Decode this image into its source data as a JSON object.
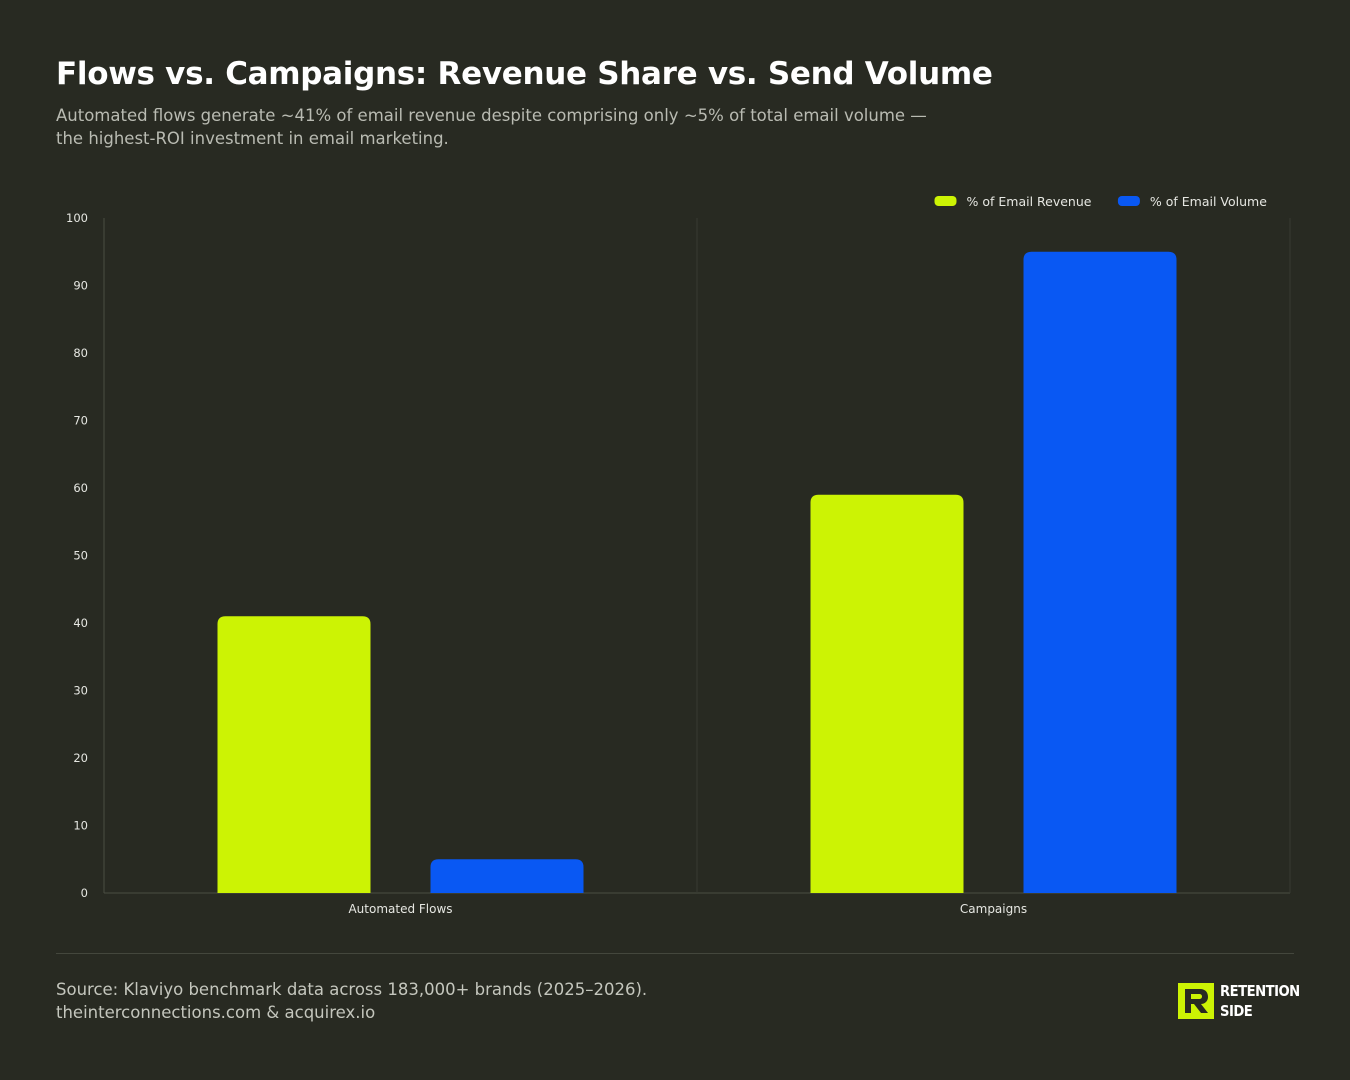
{
  "header": {
    "title": "Flows vs. Campaigns: Revenue Share vs. Send Volume",
    "subtitle": "Automated flows generate ~41% of email revenue despite comprising only ~5% of total email volume — the highest-ROI investment in email marketing."
  },
  "chart_data": {
    "type": "bar",
    "categories": [
      "Automated Flows",
      "Campaigns"
    ],
    "series": [
      {
        "name": "% of Email Revenue",
        "values": [
          41,
          59
        ],
        "color": "#ccf304"
      },
      {
        "name": "% of Email Volume",
        "values": [
          5,
          95
        ],
        "color": "#0958f3"
      }
    ],
    "ylim": [
      0,
      100
    ],
    "yticks": [
      0,
      10,
      20,
      30,
      40,
      50,
      60,
      70,
      80,
      90,
      100
    ],
    "legend_position": "top-right",
    "grid": "vertical category separators"
  },
  "footer": {
    "source": "Source: Klaviyo benchmark data across 183,000+ brands (2025–2026). theinterconnections.com & acquirex.io",
    "logo_line1": "RETENTION",
    "logo_line2": "SIDE"
  },
  "colors": {
    "background": "#282a22",
    "axis": "#4a4d43",
    "tick_text": "#e6e7e2",
    "logo_accent": "#ccf304"
  }
}
